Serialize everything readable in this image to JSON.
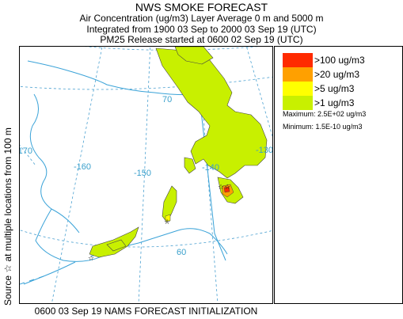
{
  "header": {
    "title": "NWS SMOKE FORECAST",
    "line1": "Air Concentration (ug/m3) Layer Average    0 m and  5000 m",
    "line2": "Integrated from 1900 03 Sep to 2000 03 Sep 19 (UTC)",
    "line3": "PM25 Release started at 0600 02 Sep 19 (UTC)"
  },
  "side_label": "Source ☆  at multiple locations   from   100 m",
  "map": {
    "longitude_labels": [
      "-170",
      "-160",
      "-150",
      "-140",
      "-130"
    ],
    "latitude_labels": [
      "70",
      "60"
    ],
    "colors": {
      "graticule": "#4aa0d0",
      "coastline": "#3ba3d8",
      "smoke_light": "#c8f000"
    }
  },
  "legend": {
    "items": [
      {
        "label": ">100 ug/m3",
        "color": "#ff2a00"
      },
      {
        "label": ">20 ug/m3",
        "color": "#ffa000"
      },
      {
        "label": ">5 ug/m3",
        "color": "#ffff00"
      },
      {
        "label": ">1 ug/m3",
        "color": "#c8f000"
      }
    ],
    "maximum": "Maximum: 2.5E+02 ug/m3",
    "minimum": "Minimum: 1.5E-10 ug/m3"
  },
  "footer": "0600 03 Sep 19 NAMS FORECAST INITIALIZATION"
}
